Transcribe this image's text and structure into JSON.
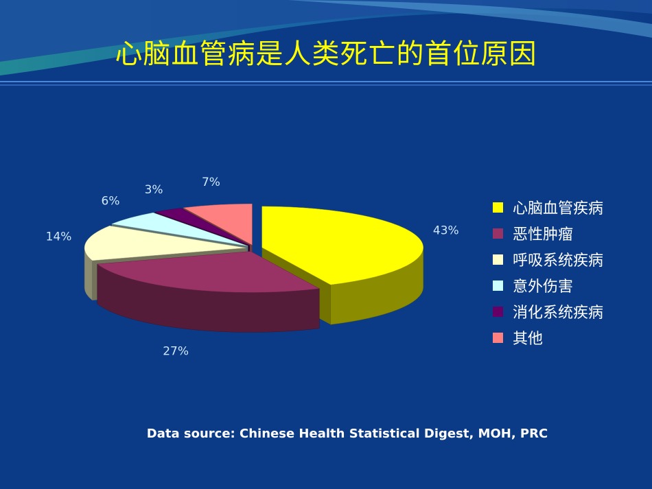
{
  "title": "心脑血管病是人类死亡的首位原因",
  "source": "Data source: Chinese Health Statistical Digest, MOH, PRC",
  "colors": {
    "background": "#0b3a86",
    "title": "#ffff00",
    "labels": "#ffffff"
  },
  "chart_data": {
    "type": "pie",
    "style": "3d-exploded",
    "legend_position": "right",
    "categories": [
      "心脑血管疾病",
      "恶性肿瘤",
      "呼吸系统疾病",
      "意外伤害",
      "消化系统疾病",
      "其他"
    ],
    "values": [
      43,
      27,
      14,
      6,
      3,
      7
    ],
    "data_labels": [
      "43%",
      "27%",
      "14%",
      "6%",
      "3%",
      "7%"
    ],
    "colors": [
      "#ffff00",
      "#993366",
      "#ffffcc",
      "#ccffff",
      "#660066",
      "#ff8080"
    ]
  }
}
